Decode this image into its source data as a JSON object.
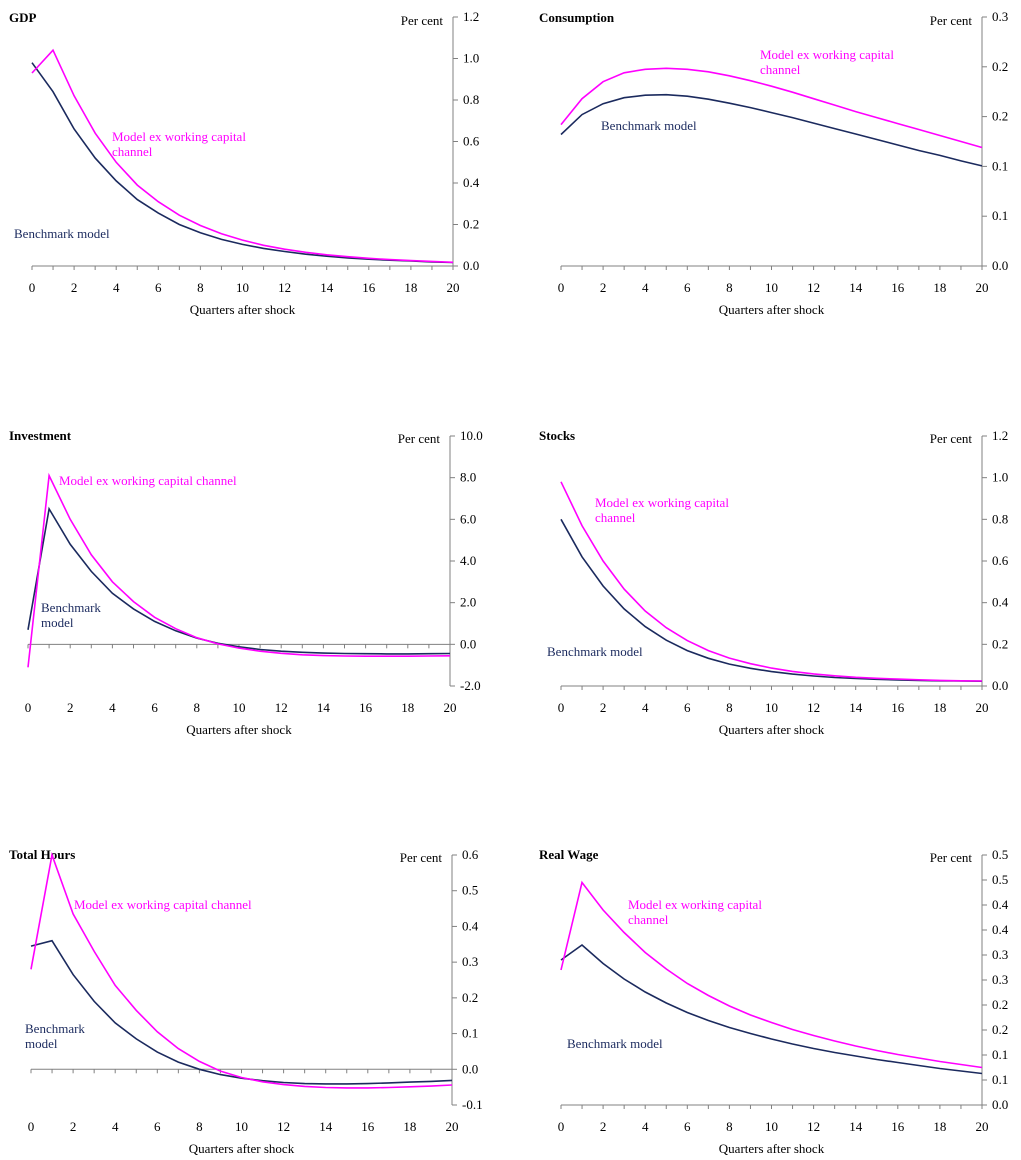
{
  "colors": {
    "benchmark": "#1b2a5e",
    "ex_wc": "#ff00ff",
    "axis": "#808080"
  },
  "chart_data": [
    {
      "type": "line",
      "title": "GDP",
      "unit_label": "Per cent",
      "xlabel": "Quarters after shock",
      "x": [
        0,
        1,
        2,
        3,
        4,
        5,
        6,
        7,
        8,
        9,
        10,
        11,
        12,
        13,
        14,
        15,
        16,
        17,
        18,
        19,
        20
      ],
      "x_ticks": [
        "0",
        "2",
        "4",
        "6",
        "8",
        "10",
        "12",
        "14",
        "16",
        "18",
        "20"
      ],
      "ylim": [
        0,
        1.2
      ],
      "y_ticks": [
        "0.0",
        "0.2",
        "0.4",
        "0.6",
        "0.8",
        "1.0",
        "1.2"
      ],
      "series": [
        {
          "name": "Benchmark model",
          "color": "#1b2a5e",
          "values": [
            0.98,
            0.84,
            0.66,
            0.52,
            0.41,
            0.32,
            0.255,
            0.2,
            0.16,
            0.128,
            0.104,
            0.085,
            0.07,
            0.057,
            0.047,
            0.039,
            0.033,
            0.028,
            0.024,
            0.02,
            0.017
          ]
        },
        {
          "name": "Model ex working capital channel",
          "color": "#ff00ff",
          "values": [
            0.93,
            1.04,
            0.82,
            0.64,
            0.5,
            0.39,
            0.31,
            0.245,
            0.195,
            0.155,
            0.125,
            0.1,
            0.081,
            0.066,
            0.054,
            0.045,
            0.037,
            0.031,
            0.026,
            0.022,
            0.018
          ]
        }
      ],
      "annotations": [
        {
          "series": 1,
          "lines": [
            "Model ex working capital",
            "channel"
          ]
        },
        {
          "series": 0,
          "lines": [
            "Benchmark model"
          ]
        }
      ]
    },
    {
      "type": "line",
      "title": "Consumption",
      "unit_label": "Per cent",
      "xlabel": "Quarters after shock",
      "x": [
        0,
        1,
        2,
        3,
        4,
        5,
        6,
        7,
        8,
        9,
        10,
        11,
        12,
        13,
        14,
        15,
        16,
        17,
        18,
        19,
        20
      ],
      "x_ticks": [
        "0",
        "2",
        "4",
        "6",
        "8",
        "10",
        "12",
        "14",
        "16",
        "18",
        "20"
      ],
      "ylim": [
        0,
        0.25
      ],
      "y_ticks": [
        "0.0",
        "0.1",
        "0.1",
        "0.2",
        "0.2",
        "0.3"
      ],
      "series": [
        {
          "name": "Benchmark model",
          "color": "#1b2a5e",
          "values": [
            0.132,
            0.152,
            0.163,
            0.169,
            0.1715,
            0.172,
            0.1705,
            0.1675,
            0.1635,
            0.159,
            0.154,
            0.149,
            0.1435,
            0.138,
            0.1325,
            0.127,
            0.1215,
            0.116,
            0.111,
            0.1055,
            0.1005
          ]
        },
        {
          "name": "Model ex working capital channel",
          "color": "#ff00ff",
          "values": [
            0.142,
            0.168,
            0.185,
            0.194,
            0.1975,
            0.1985,
            0.1975,
            0.195,
            0.191,
            0.186,
            0.1805,
            0.1745,
            0.168,
            0.1615,
            0.155,
            0.149,
            0.143,
            0.137,
            0.131,
            0.125,
            0.119
          ]
        }
      ],
      "annotations": [
        {
          "series": 1,
          "lines": [
            "Model ex working capital",
            "channel"
          ]
        },
        {
          "series": 0,
          "lines": [
            "Benchmark model"
          ]
        }
      ]
    },
    {
      "type": "line",
      "title": "Investment",
      "unit_label": "Per cent",
      "xlabel": "Quarters after shock",
      "x": [
        0,
        1,
        2,
        3,
        4,
        5,
        6,
        7,
        8,
        9,
        10,
        11,
        12,
        13,
        14,
        15,
        16,
        17,
        18,
        19,
        20
      ],
      "x_ticks": [
        "0",
        "2",
        "4",
        "6",
        "8",
        "10",
        "12",
        "14",
        "16",
        "18",
        "20"
      ],
      "ylim": [
        -2,
        10
      ],
      "y_ticks": [
        "-2.0",
        "0.0",
        "2.0",
        "4.0",
        "6.0",
        "8.0",
        "10.0"
      ],
      "series": [
        {
          "name": "Benchmark model",
          "color": "#1b2a5e",
          "values": [
            0.7,
            6.5,
            4.8,
            3.5,
            2.45,
            1.7,
            1.1,
            0.65,
            0.3,
            0.05,
            -0.12,
            -0.25,
            -0.33,
            -0.38,
            -0.42,
            -0.44,
            -0.45,
            -0.46,
            -0.46,
            -0.45,
            -0.44
          ]
        },
        {
          "name": "Model ex working capital channel",
          "color": "#ff00ff",
          "values": [
            -1.1,
            8.1,
            6.0,
            4.3,
            3.0,
            2.05,
            1.3,
            0.75,
            0.32,
            0.02,
            -0.18,
            -0.33,
            -0.43,
            -0.5,
            -0.54,
            -0.56,
            -0.57,
            -0.57,
            -0.57,
            -0.56,
            -0.55
          ]
        }
      ],
      "annotations": [
        {
          "series": 1,
          "lines": [
            "Model ex working capital channel"
          ]
        },
        {
          "series": 0,
          "lines": [
            "Benchmark",
            "model"
          ]
        }
      ]
    },
    {
      "type": "line",
      "title": "Stocks",
      "unit_label": "Per cent",
      "xlabel": "Quarters after shock",
      "x": [
        0,
        1,
        2,
        3,
        4,
        5,
        6,
        7,
        8,
        9,
        10,
        11,
        12,
        13,
        14,
        15,
        16,
        17,
        18,
        19,
        20
      ],
      "x_ticks": [
        "0",
        "2",
        "4",
        "6",
        "8",
        "10",
        "12",
        "14",
        "16",
        "18",
        "20"
      ],
      "ylim": [
        0,
        1.2
      ],
      "y_ticks": [
        "0.0",
        "0.2",
        "0.4",
        "0.6",
        "0.8",
        "1.0",
        "1.2"
      ],
      "series": [
        {
          "name": "Benchmark model",
          "color": "#1b2a5e",
          "values": [
            0.8,
            0.62,
            0.48,
            0.37,
            0.285,
            0.22,
            0.17,
            0.133,
            0.105,
            0.085,
            0.069,
            0.057,
            0.048,
            0.041,
            0.036,
            0.032,
            0.029,
            0.027,
            0.025,
            0.024,
            0.023
          ]
        },
        {
          "name": "Model ex working capital channel",
          "color": "#ff00ff",
          "values": [
            0.98,
            0.77,
            0.6,
            0.465,
            0.36,
            0.28,
            0.218,
            0.17,
            0.134,
            0.107,
            0.086,
            0.07,
            0.058,
            0.049,
            0.042,
            0.037,
            0.033,
            0.03,
            0.027,
            0.025,
            0.024
          ]
        }
      ],
      "annotations": [
        {
          "series": 1,
          "lines": [
            "Model ex working capital",
            "channel"
          ]
        },
        {
          "series": 0,
          "lines": [
            "Benchmark model"
          ]
        }
      ]
    },
    {
      "type": "line",
      "title": "Total Hours",
      "unit_label": "Per cent",
      "xlabel": "Quarters after shock",
      "x": [
        0,
        1,
        2,
        3,
        4,
        5,
        6,
        7,
        8,
        9,
        10,
        11,
        12,
        13,
        14,
        15,
        16,
        17,
        18,
        19,
        20
      ],
      "x_ticks": [
        "0",
        "2",
        "4",
        "6",
        "8",
        "10",
        "12",
        "14",
        "16",
        "18",
        "20"
      ],
      "ylim": [
        -0.1,
        0.6
      ],
      "y_ticks": [
        "-0.1",
        "0.0",
        "0.1",
        "0.2",
        "0.3",
        "0.4",
        "0.5",
        "0.6"
      ],
      "series": [
        {
          "name": "Benchmark model",
          "color": "#1b2a5e",
          "values": [
            0.345,
            0.36,
            0.265,
            0.19,
            0.13,
            0.085,
            0.048,
            0.02,
            0.0,
            -0.015,
            -0.025,
            -0.032,
            -0.037,
            -0.04,
            -0.041,
            -0.041,
            -0.04,
            -0.038,
            -0.036,
            -0.034,
            -0.031
          ]
        },
        {
          "name": "Model ex working capital channel",
          "color": "#ff00ff",
          "values": [
            0.28,
            0.6,
            0.435,
            0.33,
            0.235,
            0.165,
            0.105,
            0.058,
            0.022,
            -0.005,
            -0.023,
            -0.035,
            -0.043,
            -0.048,
            -0.051,
            -0.052,
            -0.052,
            -0.051,
            -0.049,
            -0.047,
            -0.044
          ]
        }
      ],
      "annotations": [
        {
          "series": 1,
          "lines": [
            "Model ex working capital channel"
          ]
        },
        {
          "series": 0,
          "lines": [
            "Benchmark",
            "model"
          ]
        }
      ]
    },
    {
      "type": "line",
      "title": "Real Wage",
      "unit_label": "Per cent",
      "xlabel": "Quarters after shock",
      "x": [
        0,
        1,
        2,
        3,
        4,
        5,
        6,
        7,
        8,
        9,
        10,
        11,
        12,
        13,
        14,
        15,
        16,
        17,
        18,
        19,
        20
      ],
      "x_ticks": [
        "0",
        "2",
        "4",
        "6",
        "8",
        "10",
        "12",
        "14",
        "16",
        "18",
        "20"
      ],
      "ylim": [
        0,
        0.5
      ],
      "y_ticks": [
        "0.0",
        "0.1",
        "0.1",
        "0.2",
        "0.2",
        "0.3",
        "0.3",
        "0.4",
        "0.4",
        "0.5",
        "0.5"
      ],
      "series": [
        {
          "name": "Benchmark model",
          "color": "#1b2a5e",
          "values": [
            0.29,
            0.32,
            0.283,
            0.252,
            0.226,
            0.204,
            0.185,
            0.169,
            0.155,
            0.143,
            0.132,
            0.122,
            0.113,
            0.105,
            0.098,
            0.091,
            0.085,
            0.079,
            0.073,
            0.068,
            0.063
          ]
        },
        {
          "name": "Model ex working capital channel",
          "color": "#ff00ff",
          "values": [
            0.27,
            0.445,
            0.39,
            0.345,
            0.305,
            0.272,
            0.243,
            0.219,
            0.198,
            0.18,
            0.165,
            0.151,
            0.139,
            0.128,
            0.118,
            0.109,
            0.101,
            0.094,
            0.087,
            0.081,
            0.075
          ]
        }
      ],
      "annotations": [
        {
          "series": 1,
          "lines": [
            "Model ex working capital",
            "channel"
          ]
        },
        {
          "series": 0,
          "lines": [
            "Benchmark model"
          ]
        }
      ]
    }
  ]
}
